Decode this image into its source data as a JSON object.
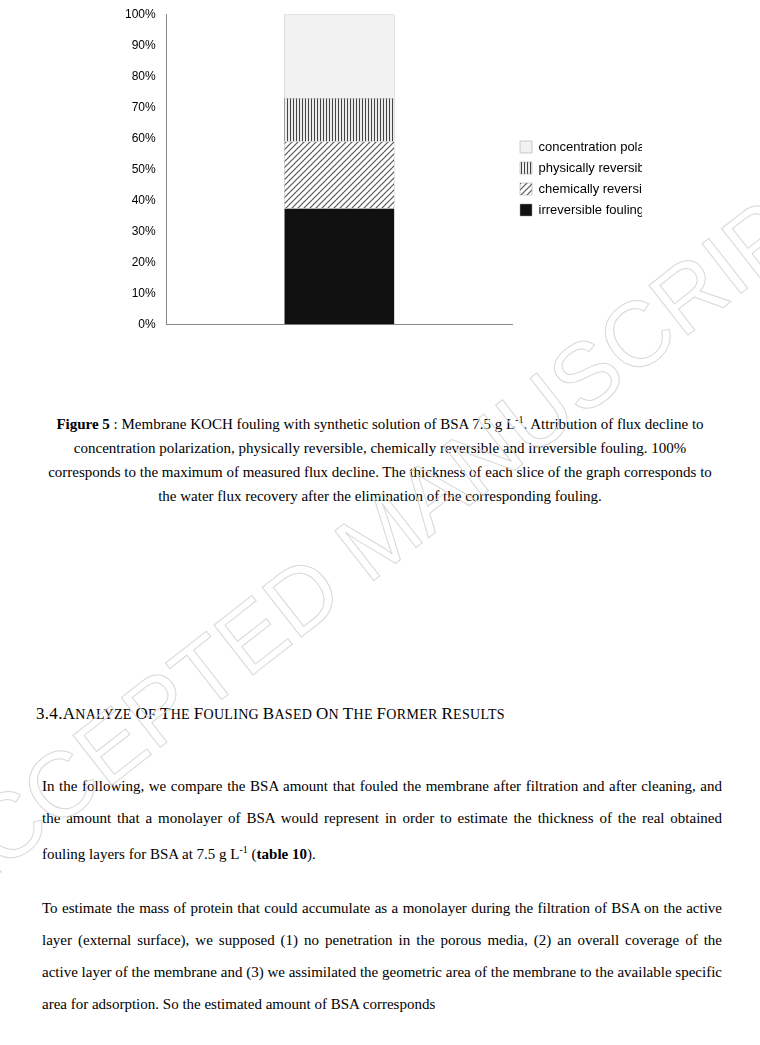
{
  "chart_data": {
    "type": "bar",
    "stacked": true,
    "categories": [
      null
    ],
    "series": [
      {
        "name": "irreversible fouling",
        "color": "#111111",
        "values": [
          37.5
        ]
      },
      {
        "name": "chemically reversible fouling",
        "color": "#555555",
        "values": [
          21.5
        ]
      },
      {
        "name": "physically reversible fouling",
        "color": "#444444",
        "values": [
          14
        ]
      },
      {
        "name": "concentration polarization",
        "color": "#f2f2f2",
        "values": [
          27
        ]
      }
    ],
    "ylim": [
      0,
      100
    ],
    "yticks": [
      {
        "value": 0,
        "label": "0%"
      },
      {
        "value": 10,
        "label": "10%"
      },
      {
        "value": 20,
        "label": "20%"
      },
      {
        "value": 30,
        "label": "30%"
      },
      {
        "value": 40,
        "label": "40%"
      },
      {
        "value": 50,
        "label": "50%"
      },
      {
        "value": 60,
        "label": "60%"
      },
      {
        "value": 70,
        "label": "70%"
      },
      {
        "value": 80,
        "label": "80%"
      },
      {
        "value": 90,
        "label": "90%"
      },
      {
        "value": 100,
        "label": "100%"
      }
    ],
    "grid": false,
    "legend": "right"
  },
  "caption": [
    {
      "t": "Figure 5",
      "style": "bold"
    },
    {
      "t": " : Membrane KOCH fouling with synthetic solution of BSA 7.5 g L"
    },
    {
      "t": "-1",
      "style": "sup"
    },
    {
      "t": ". Attribution of flux decline to concentration polarization, physically reversible, chemically reversible and irreversible fouling. 100% corresponds to the maximum of measured flux decline. The thickness of each slice of the graph corresponds to the water flux recovery after the elimination of the corresponding fouling."
    }
  ],
  "heading": "3.4.ANALYZE OF THE FOULING BASED ON THE FORMER RESULTS",
  "paragraphs": [
    [
      {
        "t": "In the following, we compare the BSA amount that fouled the membrane after filtration and after cleaning, and the amount that a monolayer of BSA would represent in order to estimate the thickness of the real obtained fouling layers for BSA at 7.5 g L"
      },
      {
        "t": "-1",
        "style": "sup"
      },
      {
        "t": " ("
      },
      {
        "t": "table 10",
        "style": "bold"
      },
      {
        "t": ")."
      }
    ],
    [
      {
        "t": "To estimate the mass of protein that could accumulate as a monolayer during the filtration of BSA on the active layer (external surface), we supposed (1) no penetration in the porous media, (2) an overall coverage of the active layer of the membrane and (3) we assimilated the geometric area of the membrane to the available specific area for adsorption. So the estimated amount of BSA corresponds"
      }
    ]
  ],
  "watermark": "ACCEPTED MANUSCRIPT"
}
